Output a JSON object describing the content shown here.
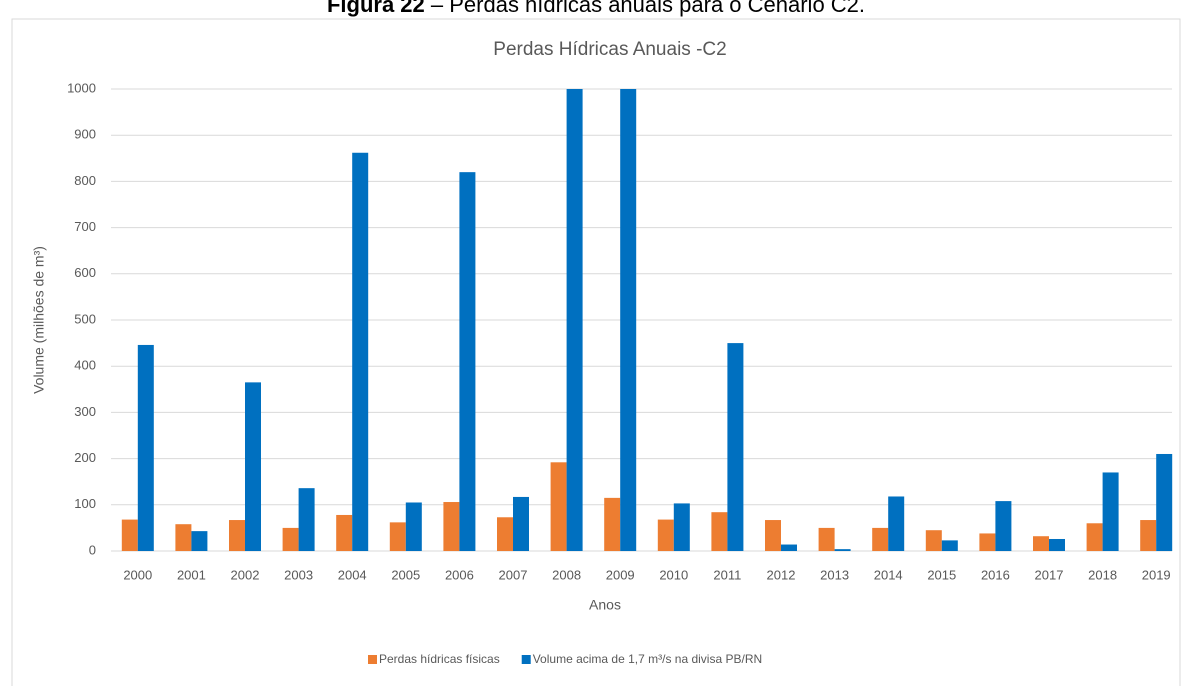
{
  "caption": {
    "label": "Figura 22",
    "text": "– Perdas hídricas anuais para o Cenário C2."
  },
  "chart_data": {
    "type": "bar",
    "title": "Perdas Hídricas Anuais -C2",
    "xlabel": "Anos",
    "ylabel": "Volume (milhões de m³)",
    "categories": [
      "2000",
      "2001",
      "2002",
      "2003",
      "2004",
      "2005",
      "2006",
      "2007",
      "2008",
      "2009",
      "2010",
      "2011",
      "2012",
      "2013",
      "2014",
      "2015",
      "2016",
      "2017",
      "2018",
      "2019"
    ],
    "series": [
      {
        "name": "Perdas hídricas físicas",
        "color": "#ed7d31",
        "values": [
          68,
          58,
          67,
          50,
          78,
          62,
          106,
          73,
          192,
          115,
          68,
          84,
          67,
          50,
          50,
          45,
          38,
          32,
          60,
          67
        ]
      },
      {
        "name": "Volume acima de 1,7 m³/s na divisa PB/RN",
        "color": "#0070c0",
        "values": [
          446,
          43,
          365,
          136,
          862,
          105,
          820,
          117,
          1000,
          1000,
          103,
          450,
          14,
          4,
          118,
          23,
          108,
          26,
          170,
          210
        ]
      }
    ],
    "ylim": [
      0,
      1000
    ],
    "yticks": [
      0,
      100,
      200,
      300,
      400,
      500,
      600,
      700,
      800,
      900,
      1000
    ],
    "grid": true,
    "legend": "bottom"
  }
}
